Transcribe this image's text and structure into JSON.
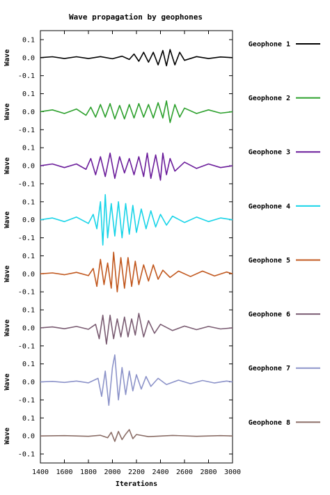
{
  "chart_data": {
    "type": "line",
    "title": "Wave propagation by geophones",
    "xlabel": "Iterations",
    "ylabel": "Wave",
    "xlim": [
      1400,
      3000
    ],
    "xticks": [
      "1400",
      "1600",
      "1800",
      "2000",
      "2200",
      "2400",
      "2600",
      "2800",
      "3000"
    ],
    "ylim": [
      -0.15,
      0.15
    ],
    "yticks": [
      "0.1",
      "0.0",
      "-0.1"
    ],
    "grid": false,
    "legend_position": "right",
    "series": [
      {
        "name": "Geophone 1",
        "color": "#000000",
        "x": [
          1400,
          1500,
          1600,
          1700,
          1800,
          1900,
          2000,
          2080,
          2140,
          2180,
          2220,
          2260,
          2300,
          2340,
          2380,
          2420,
          2450,
          2480,
          2520,
          2560,
          2600,
          2700,
          2800,
          2900,
          3000
        ],
        "values": [
          0.0,
          0.005,
          -0.005,
          0.005,
          -0.005,
          0.006,
          -0.006,
          0.008,
          -0.01,
          0.02,
          -0.02,
          0.03,
          -0.025,
          0.03,
          -0.04,
          0.04,
          -0.045,
          0.045,
          -0.04,
          0.03,
          -0.015,
          0.006,
          -0.005,
          0.004,
          0.0
        ]
      },
      {
        "name": "Geophone 2",
        "color": "#2ca02c",
        "x": [
          1400,
          1500,
          1600,
          1700,
          1780,
          1820,
          1860,
          1900,
          1940,
          1980,
          2020,
          2060,
          2100,
          2140,
          2180,
          2220,
          2260,
          2300,
          2340,
          2380,
          2420,
          2450,
          2480,
          2520,
          2560,
          2600,
          2700,
          2800,
          2900,
          3000
        ],
        "values": [
          0.0,
          0.01,
          -0.01,
          0.015,
          -0.02,
          0.025,
          -0.03,
          0.04,
          -0.03,
          0.045,
          -0.04,
          0.035,
          -0.04,
          0.04,
          -0.035,
          0.045,
          -0.03,
          0.04,
          -0.035,
          0.05,
          -0.035,
          0.06,
          -0.06,
          0.04,
          -0.03,
          0.02,
          -0.01,
          0.01,
          -0.008,
          0.0
        ]
      },
      {
        "name": "Geophone 3",
        "color": "#6a1b9a",
        "x": [
          1400,
          1500,
          1600,
          1700,
          1780,
          1820,
          1860,
          1900,
          1940,
          1980,
          2020,
          2060,
          2100,
          2140,
          2180,
          2220,
          2260,
          2290,
          2320,
          2360,
          2400,
          2420,
          2450,
          2480,
          2520,
          2600,
          2700,
          2800,
          2900,
          3000
        ],
        "values": [
          0.0,
          0.01,
          -0.01,
          0.01,
          -0.02,
          0.04,
          -0.05,
          0.05,
          -0.06,
          0.07,
          -0.07,
          0.05,
          -0.04,
          0.04,
          -0.05,
          0.05,
          -0.06,
          0.07,
          -0.07,
          0.06,
          -0.08,
          0.07,
          -0.05,
          0.04,
          -0.03,
          0.02,
          -0.015,
          0.01,
          -0.01,
          0.0
        ]
      },
      {
        "name": "Geophone 4",
        "color": "#17d4e8",
        "x": [
          1400,
          1500,
          1600,
          1700,
          1800,
          1840,
          1870,
          1900,
          1920,
          1940,
          1960,
          1990,
          2020,
          2050,
          2080,
          2110,
          2140,
          2170,
          2200,
          2240,
          2280,
          2320,
          2360,
          2400,
          2450,
          2500,
          2600,
          2700,
          2800,
          2900,
          3000
        ],
        "values": [
          0.0,
          0.01,
          -0.01,
          0.015,
          -0.02,
          0.03,
          -0.05,
          0.1,
          -0.14,
          0.14,
          -0.1,
          0.09,
          -0.09,
          0.1,
          -0.1,
          0.09,
          -0.08,
          0.08,
          -0.07,
          0.06,
          -0.05,
          0.05,
          -0.04,
          0.03,
          -0.03,
          0.02,
          -0.015,
          0.015,
          -0.01,
          0.01,
          0.0
        ]
      },
      {
        "name": "Geophone 5",
        "color": "#c1571d",
        "x": [
          1400,
          1500,
          1600,
          1700,
          1800,
          1840,
          1870,
          1900,
          1930,
          1960,
          1990,
          2010,
          2040,
          2070,
          2100,
          2130,
          2160,
          2190,
          2220,
          2260,
          2300,
          2340,
          2380,
          2420,
          2480,
          2550,
          2650,
          2750,
          2850,
          2950,
          3000
        ],
        "values": [
          0.0,
          0.005,
          -0.005,
          0.008,
          -0.01,
          0.03,
          -0.07,
          0.08,
          -0.06,
          0.06,
          -0.08,
          0.12,
          -0.1,
          0.09,
          -0.08,
          0.09,
          -0.07,
          0.07,
          -0.06,
          0.05,
          -0.04,
          0.05,
          -0.03,
          0.02,
          -0.02,
          0.015,
          -0.015,
          0.015,
          -0.012,
          0.01,
          0.0
        ]
      },
      {
        "name": "Geophone 6",
        "color": "#7a5c72",
        "x": [
          1400,
          1500,
          1600,
          1700,
          1800,
          1860,
          1890,
          1920,
          1950,
          1980,
          2010,
          2040,
          2070,
          2100,
          2130,
          2160,
          2190,
          2220,
          2260,
          2300,
          2350,
          2400,
          2500,
          2600,
          2700,
          2800,
          2900,
          3000
        ],
        "values": [
          0.0,
          0.005,
          -0.005,
          0.008,
          -0.008,
          0.02,
          -0.06,
          0.07,
          -0.09,
          0.07,
          -0.06,
          0.05,
          -0.05,
          0.06,
          -0.05,
          0.05,
          -0.04,
          0.08,
          -0.05,
          0.04,
          -0.03,
          0.02,
          -0.015,
          0.01,
          -0.01,
          0.008,
          -0.006,
          0.0
        ]
      },
      {
        "name": "Geophone 7",
        "color": "#8c93c9",
        "x": [
          1400,
          1500,
          1600,
          1700,
          1800,
          1880,
          1910,
          1940,
          1970,
          2000,
          2020,
          2050,
          2080,
          2110,
          2140,
          2170,
          2200,
          2240,
          2280,
          2320,
          2380,
          2450,
          2550,
          2650,
          2750,
          2850,
          2950,
          3000
        ],
        "values": [
          0.0,
          0.003,
          -0.003,
          0.005,
          -0.005,
          0.02,
          -0.08,
          0.06,
          -0.13,
          0.08,
          0.15,
          -0.1,
          0.08,
          -0.07,
          0.06,
          -0.05,
          0.04,
          -0.04,
          0.03,
          -0.025,
          0.02,
          -0.015,
          0.01,
          -0.01,
          0.008,
          -0.006,
          0.005,
          0.0
        ]
      },
      {
        "name": "Geophone 8",
        "color": "#8b6e67",
        "x": [
          1400,
          1600,
          1800,
          1900,
          1960,
          1990,
          2020,
          2050,
          2080,
          2110,
          2140,
          2170,
          2200,
          2300,
          2500,
          2700,
          2900,
          3000
        ],
        "values": [
          0.0,
          0.002,
          -0.002,
          0.004,
          -0.01,
          0.02,
          -0.03,
          0.025,
          -0.02,
          0.01,
          0.035,
          -0.015,
          0.008,
          -0.004,
          0.003,
          -0.002,
          0.002,
          0.0
        ]
      }
    ]
  }
}
